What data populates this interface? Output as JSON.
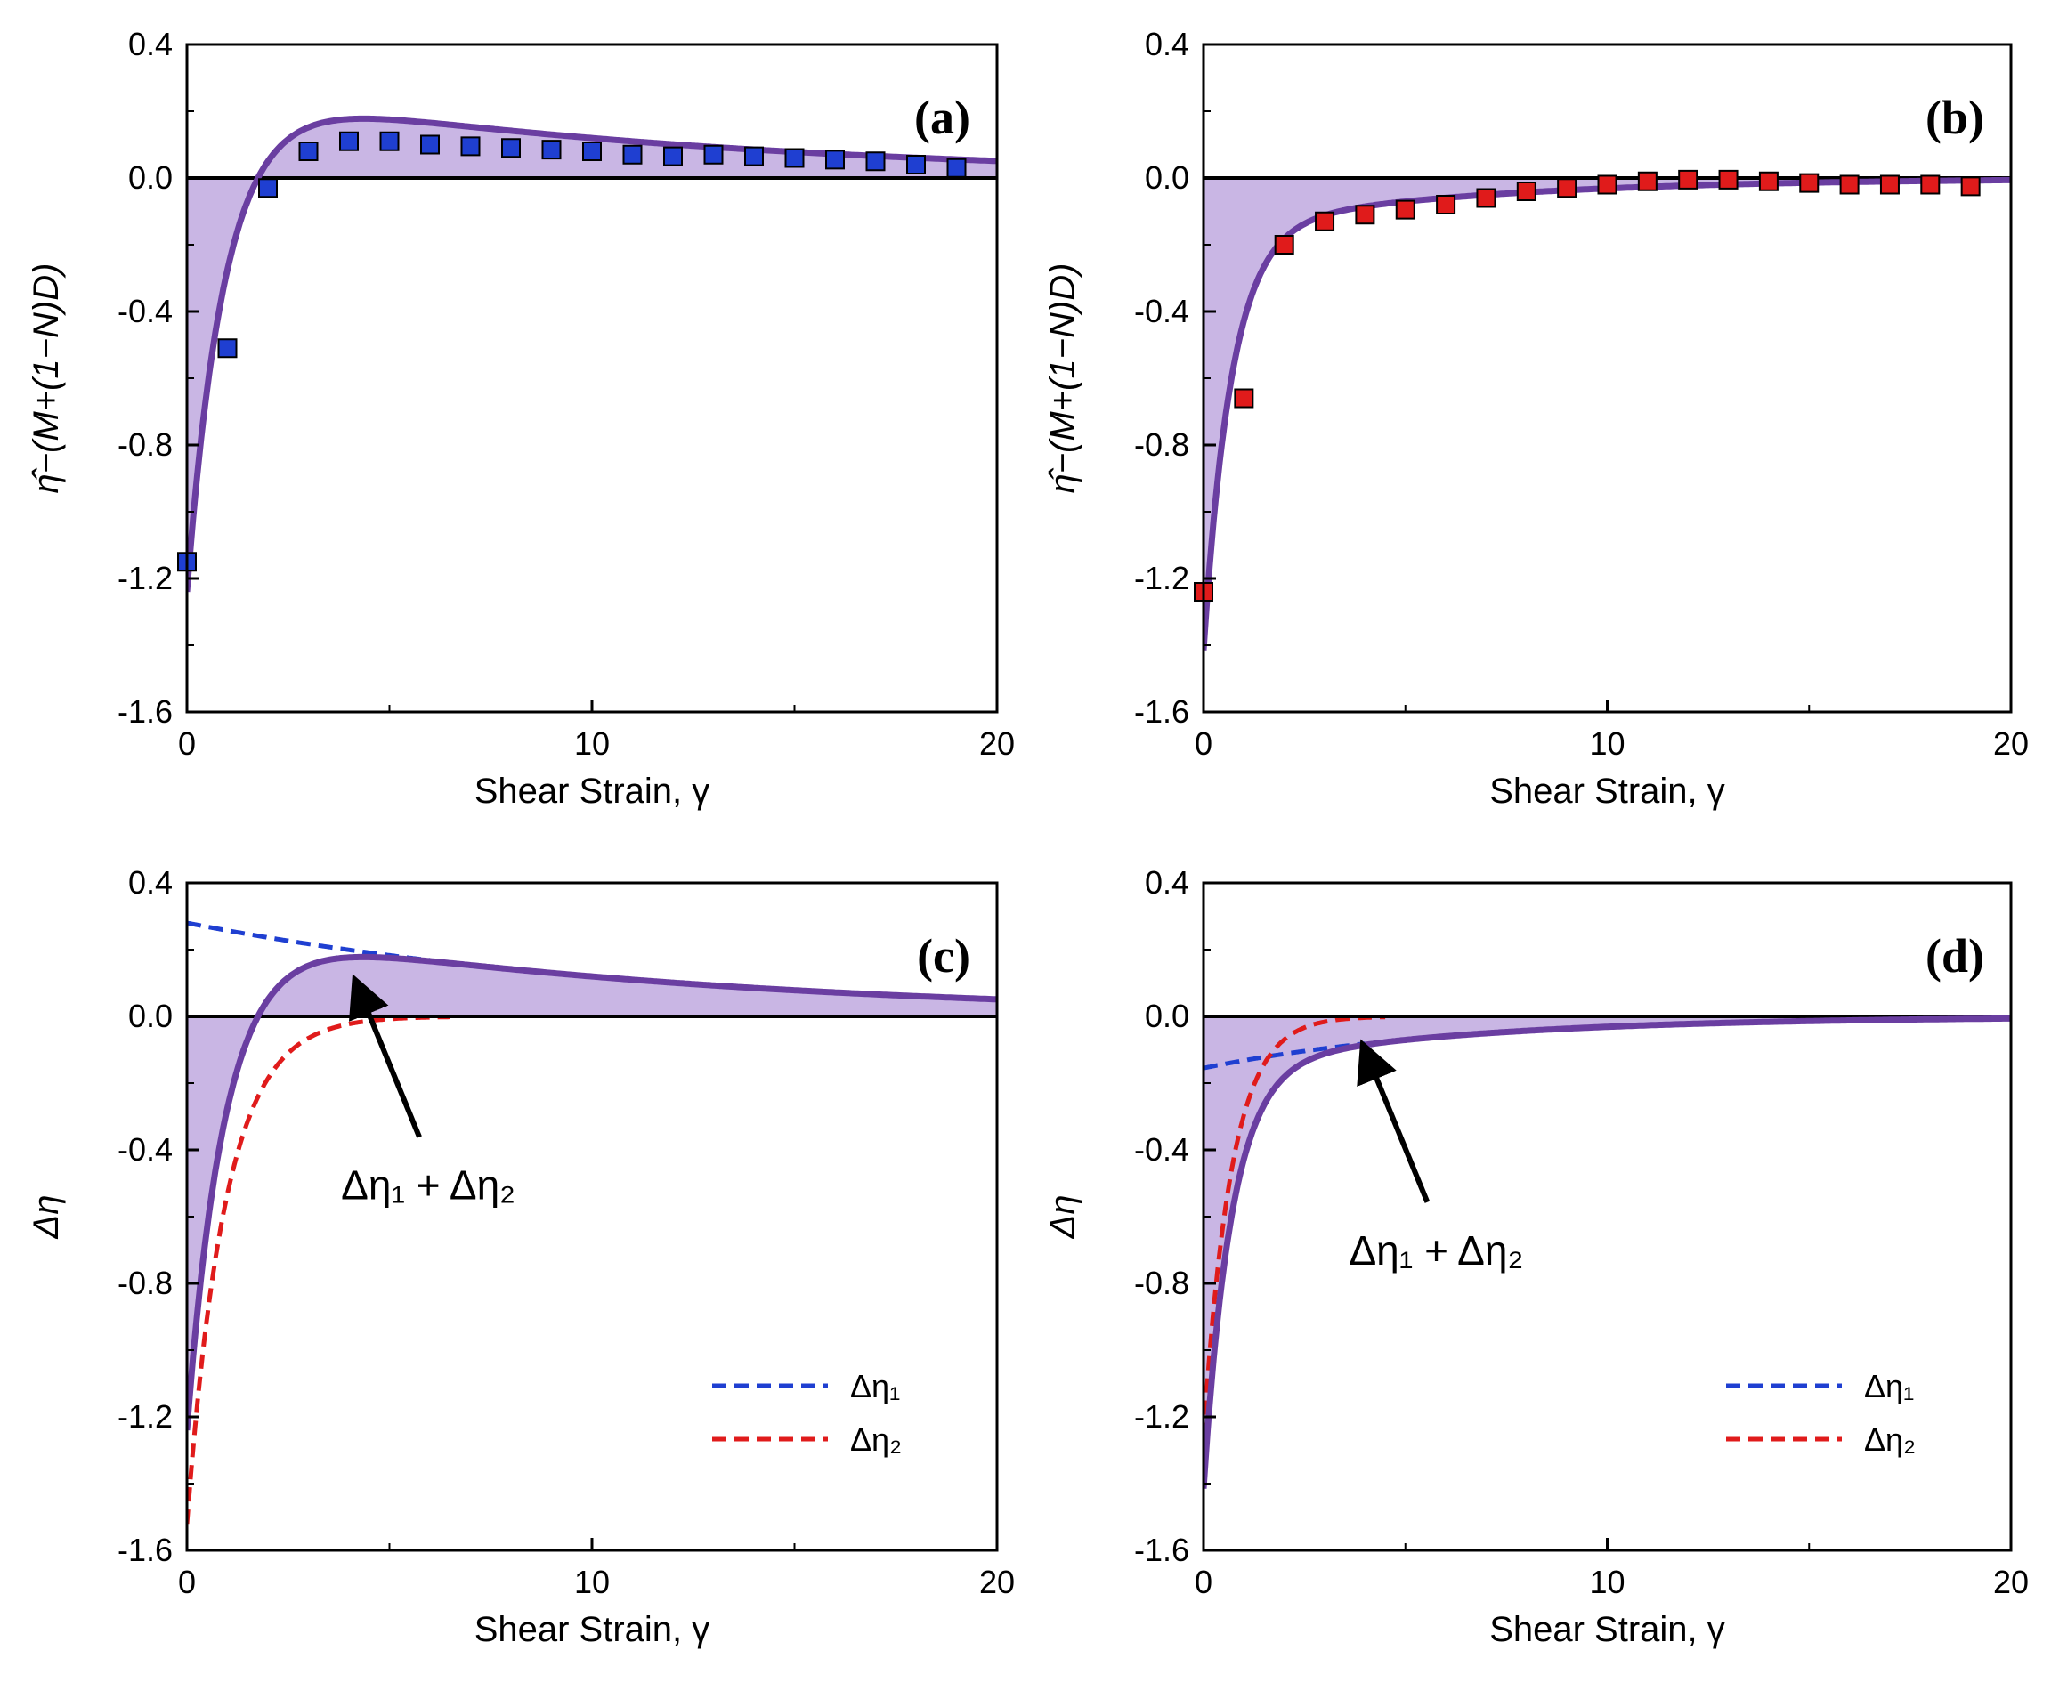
{
  "chart_data": [
    {
      "type": "line",
      "panel_label": "(a)",
      "xlabel": "Shear Strain, γ",
      "ylabel": "η̂−(M+(1−N)D)",
      "xlim": [
        0,
        20
      ],
      "ylim": [
        -1.6,
        0.4
      ],
      "xticks": [
        "0",
        "10",
        "20"
      ],
      "yticks": [
        "0.4",
        "0.0",
        "-0.4",
        "-0.8",
        "-1.2",
        "-1.6"
      ],
      "colors": {
        "curve": "#6a3ea1",
        "fill": "#c9b6e4",
        "marker": "#1f3fd1"
      },
      "shaded": true,
      "model": {
        "a1": 0.28,
        "b1": 0.085,
        "a2": -1.52,
        "b2": 1.05
      },
      "markers": {
        "x": [
          0,
          1,
          2,
          3,
          4,
          5,
          6,
          7,
          8,
          9,
          10,
          11,
          12,
          13,
          14,
          15,
          16,
          17,
          18,
          19
        ],
        "y": [
          -1.15,
          -0.51,
          -0.03,
          0.08,
          0.11,
          0.11,
          0.1,
          0.095,
          0.09,
          0.085,
          0.08,
          0.07,
          0.065,
          0.07,
          0.065,
          0.06,
          0.055,
          0.05,
          0.04,
          0.03
        ]
      }
    },
    {
      "type": "line",
      "panel_label": "(b)",
      "xlabel": "Shear Strain, γ",
      "ylabel": "η̂−(M+(1−N)D)",
      "xlim": [
        0,
        20
      ],
      "ylim": [
        -1.6,
        0.4
      ],
      "xticks": [
        "0",
        "10",
        "20"
      ],
      "yticks": [
        "0.4",
        "0.0",
        "-0.4",
        "-0.8",
        "-1.2",
        "-1.6"
      ],
      "colors": {
        "curve": "#6a3ea1",
        "fill": "#c9b6e4",
        "marker": "#e01b1b"
      },
      "shaded": true,
      "model": {
        "a1": -0.155,
        "b1": 0.16,
        "a2": -1.26,
        "b2": 1.45
      },
      "markers": {
        "x": [
          0,
          1,
          2,
          3,
          4,
          5,
          6,
          7,
          8,
          9,
          10,
          11,
          12,
          13,
          14,
          15,
          16,
          17,
          18,
          19
        ],
        "y": [
          -1.24,
          -0.66,
          -0.2,
          -0.13,
          -0.11,
          -0.095,
          -0.08,
          -0.06,
          -0.04,
          -0.03,
          -0.02,
          -0.01,
          -0.005,
          -0.005,
          -0.01,
          -0.015,
          -0.02,
          -0.02,
          -0.02,
          -0.025
        ]
      }
    },
    {
      "type": "line",
      "panel_label": "(c)",
      "xlabel": "Shear Strain, γ",
      "ylabel": "Δη",
      "xlim": [
        0,
        20
      ],
      "ylim": [
        -1.6,
        0.4
      ],
      "xticks": [
        "0",
        "10",
        "20"
      ],
      "yticks": [
        "0.4",
        "0.0",
        "-0.4",
        "-0.8",
        "-1.2",
        "-1.6"
      ],
      "colors": {
        "curve": "#6a3ea1",
        "fill": "#c9b6e4",
        "series1": "#1f3fd1",
        "series2": "#e01b1b"
      },
      "shaded": true,
      "model": {
        "a1": 0.28,
        "b1": 0.085,
        "a2": -1.52,
        "b2": 1.05
      },
      "series": [
        {
          "name": "Δη₁",
          "color": "#1f3fd1",
          "component": 1,
          "x_end": 6
        },
        {
          "name": "Δη₂",
          "color": "#e01b1b",
          "component": 2,
          "x_end": 6.5
        }
      ],
      "legend": [
        "Δη₁",
        "Δη₂"
      ],
      "legend_position": "lower-right",
      "annotation": {
        "text": "Δη₁ + Δη₂",
        "points_to": [
          4.2,
          0.105
        ]
      }
    },
    {
      "type": "line",
      "panel_label": "(d)",
      "xlabel": "Shear Strain, γ",
      "ylabel": "Δη",
      "xlim": [
        0,
        20
      ],
      "ylim": [
        -1.6,
        0.4
      ],
      "xticks": [
        "0",
        "10",
        "20"
      ],
      "yticks": [
        "0.4",
        "0.0",
        "-0.4",
        "-0.8",
        "-1.2",
        "-1.6"
      ],
      "colors": {
        "curve": "#6a3ea1",
        "fill": "#c9b6e4",
        "series1": "#1f3fd1",
        "series2": "#e01b1b"
      },
      "shaded": true,
      "model": {
        "a1": -0.155,
        "b1": 0.16,
        "a2": -1.26,
        "b2": 1.45
      },
      "series": [
        {
          "name": "Δη₁",
          "color": "#1f3fd1",
          "component": 1,
          "x_end": 4
        },
        {
          "name": "Δη₂",
          "color": "#e01b1b",
          "component": 2,
          "x_end": 4.5
        }
      ],
      "legend": [
        "Δη₁",
        "Δη₂"
      ],
      "legend_position": "lower-right",
      "annotation": {
        "text": "Δη₁ + Δη₂",
        "points_to": [
          4.0,
          -0.09
        ]
      }
    }
  ]
}
